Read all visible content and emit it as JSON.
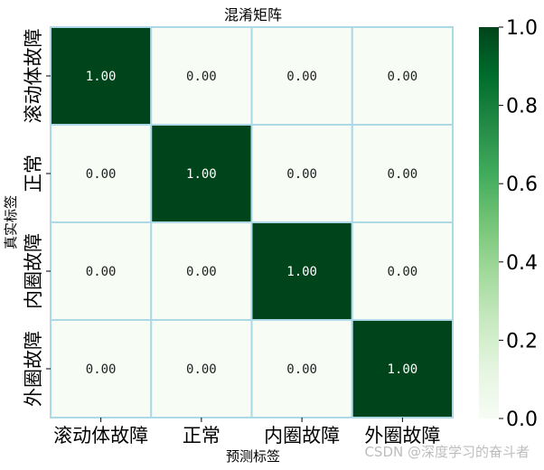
{
  "chart_data": {
    "type": "heatmap",
    "title": "混淆矩阵",
    "xlabel": "预测标签",
    "ylabel": "真实标签",
    "x_categories": [
      "滚动体故障",
      "正常",
      "内圈故障",
      "外圈故障"
    ],
    "y_categories": [
      "滚动体故障",
      "正常",
      "内圈故障",
      "外圈故障"
    ],
    "values": [
      [
        1.0,
        0.0,
        0.0,
        0.0
      ],
      [
        0.0,
        1.0,
        0.0,
        0.0
      ],
      [
        0.0,
        0.0,
        1.0,
        0.0
      ],
      [
        0.0,
        0.0,
        0.0,
        1.0
      ]
    ],
    "cell_labels": [
      [
        "1.00",
        "0.00",
        "0.00",
        "0.00"
      ],
      [
        "0.00",
        "1.00",
        "0.00",
        "0.00"
      ],
      [
        "0.00",
        "0.00",
        "1.00",
        "0.00"
      ],
      [
        "0.00",
        "0.00",
        "0.00",
        "1.00"
      ]
    ],
    "colorbar": {
      "range": [
        0.0,
        1.0
      ],
      "ticks": [
        "0.0",
        "0.2",
        "0.4",
        "0.6",
        "0.8",
        "1.0"
      ],
      "colormap": "Greens"
    },
    "colors": {
      "low": "#f7fcf5",
      "high": "#00441b",
      "cell_border": "#add8e6"
    }
  },
  "watermark": "CSDN @深度学习的奋斗者"
}
